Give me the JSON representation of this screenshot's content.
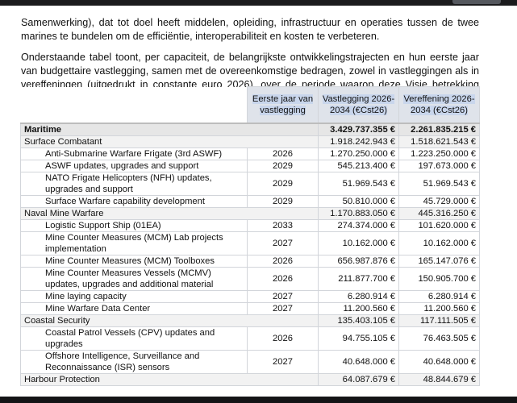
{
  "paragraphs": [
    "Samenwerking), dat tot doel heeft middelen, opleiding, infrastructuur en operaties tussen de twee marines te bundelen om de efficiëntie, interoperabiliteit en kosten te verbeteren.",
    "Onderstaande tabel toont, per capaciteit, de belangrijkste ontwikkelingstrajecten en hun eerste jaar van budgettaire vastlegging, samen met de overeenkomstige bedragen, zowel in vastleggingen als in vereffeningen (uitgedrukt in constante euro 2026), over de periode waarop deze Visie betrekking heeft."
  ],
  "table": {
    "headers": [
      "",
      "Eerste jaar van vastlegging",
      "Vastlegging 2026-2034 (€Cst26)",
      "Vereffening 2026-2034 (€Cst26)"
    ],
    "rows": [
      {
        "level": 0,
        "name": "Maritime",
        "year": "",
        "vast": "3.429.737.355 €",
        "veref": "2.261.835.215 €"
      },
      {
        "level": 1,
        "name": "Surface Combatant",
        "year": "",
        "vast": "1.918.242.943 €",
        "veref": "1.518.621.543 €"
      },
      {
        "level": 2,
        "name": "Anti-Submarine Warfare Frigate (3rd ASWF)",
        "year": "2026",
        "vast": "1.270.250.000 €",
        "veref": "1.223.250.000 €"
      },
      {
        "level": 2,
        "name": "ASWF updates, upgrades and support",
        "year": "2029",
        "vast": "545.213.400 €",
        "veref": "197.673.000 €"
      },
      {
        "level": 2,
        "name": "NATO Frigate Helicopters (NFH) updates, upgrades and support",
        "year": "2029",
        "vast": "51.969.543 €",
        "veref": "51.969.543 €"
      },
      {
        "level": 2,
        "name": "Surface Warfare capability development",
        "year": "2029",
        "vast": "50.810.000 €",
        "veref": "45.729.000 €"
      },
      {
        "level": 1,
        "name": "Naval Mine Warfare",
        "year": "",
        "vast": "1.170.883.050 €",
        "veref": "445.316.250 €"
      },
      {
        "level": 2,
        "name": "Logistic Support Ship (01EA)",
        "year": "2033",
        "vast": "274.374.000 €",
        "veref": "101.620.000 €"
      },
      {
        "level": 2,
        "name": "Mine Counter Measures (MCM) Lab projects implementation",
        "year": "2027",
        "vast": "10.162.000 €",
        "veref": "10.162.000 €"
      },
      {
        "level": 2,
        "name": "Mine Counter Measures (MCM) Toolboxes",
        "year": "2026",
        "vast": "656.987.876 €",
        "veref": "165.147.076 €"
      },
      {
        "level": 2,
        "name": "Mine Counter Measures Vessels (MCMV) updates, upgrades and additional material",
        "year": "2026",
        "vast": "211.877.700 €",
        "veref": "150.905.700 €"
      },
      {
        "level": 2,
        "name": "Mine laying capacity",
        "year": "2027",
        "vast": "6.280.914 €",
        "veref": "6.280.914 €"
      },
      {
        "level": 2,
        "name": "Mine Warfare Data Center",
        "year": "2027",
        "vast": "11.200.560 €",
        "veref": "11.200.560 €"
      },
      {
        "level": 1,
        "name": "Coastal Security",
        "year": "",
        "vast": "135.403.105 €",
        "veref": "117.111.505 €"
      },
      {
        "level": 2,
        "name": "Coastal Patrol Vessels (CPV) updates and upgrades",
        "year": "2026",
        "vast": "94.755.105 €",
        "veref": "76.463.505 €"
      },
      {
        "level": 2,
        "name": "Offshore Intelligence, Surveillance and Reconnaissance (ISR) sensors",
        "year": "2027",
        "vast": "40.648.000 €",
        "veref": "40.648.000 €"
      },
      {
        "level": 1,
        "name": "Harbour Protection",
        "year": "",
        "vast": "64.087.679 €",
        "veref": "48.844.679 €"
      }
    ]
  }
}
